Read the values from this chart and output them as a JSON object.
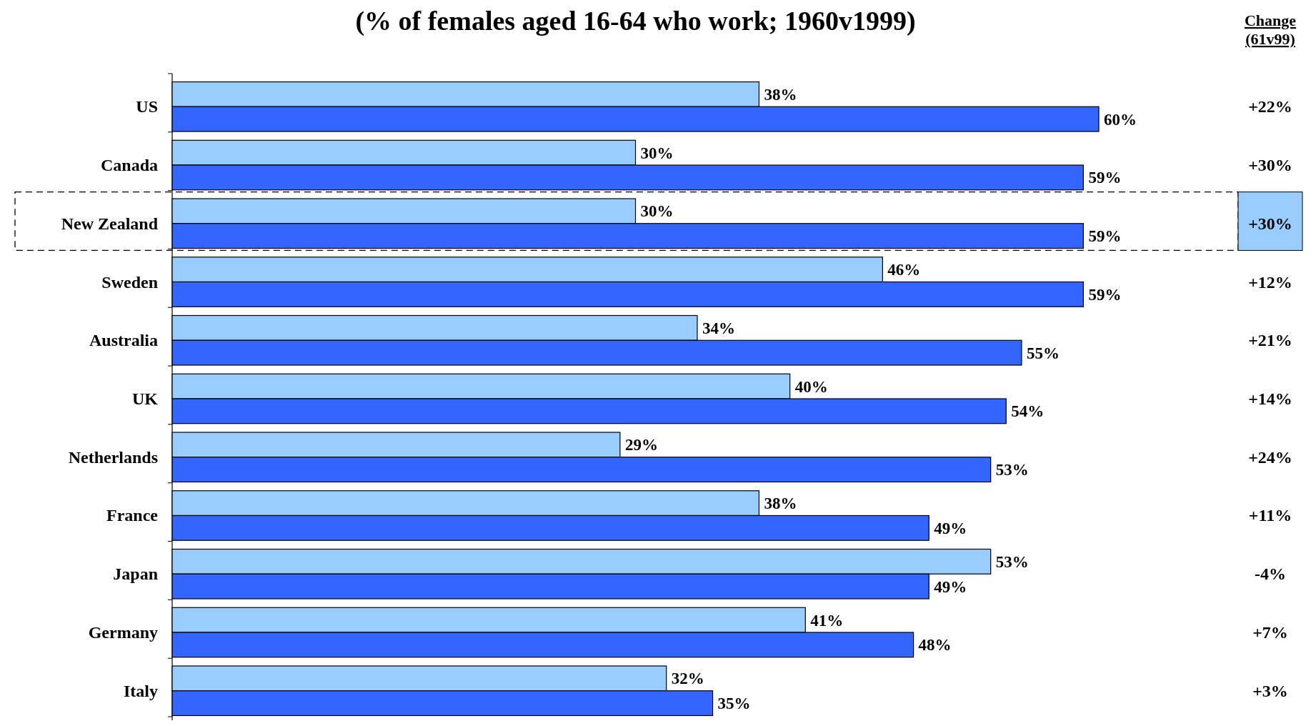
{
  "chart_data": {
    "type": "bar",
    "orientation": "horizontal",
    "title": "(% of females aged 16-64 who work; 1960v1999)",
    "categories": [
      "US",
      "Canada",
      "New Zealand",
      "Sweden",
      "Australia",
      "UK",
      "Netherlands",
      "France",
      "Japan",
      "Germany",
      "Italy"
    ],
    "series": [
      {
        "color": "#99ccff",
        "values": [
          38,
          30,
          30,
          46,
          34,
          40,
          29,
          38,
          53,
          41,
          32
        ],
        "value_labels": [
          "38%",
          "30%",
          "30%",
          "46%",
          "34%",
          "40%",
          "29%",
          "38%",
          "53%",
          "41%",
          "32%"
        ]
      },
      {
        "color": "#3366ff",
        "values": [
          60,
          59,
          59,
          59,
          55,
          54,
          53,
          49,
          49,
          48,
          35
        ],
        "value_labels": [
          "60%",
          "59%",
          "59%",
          "59%",
          "55%",
          "54%",
          "53%",
          "49%",
          "49%",
          "48%",
          "35%"
        ]
      }
    ],
    "annotations": [
      "Change (61v99)",
      "+22%",
      "+30%",
      "+30%",
      "+12%",
      "+21%",
      "+14%",
      "+24%",
      "+11%",
      "-4%",
      "+7%",
      "+3%"
    ]
  }
}
